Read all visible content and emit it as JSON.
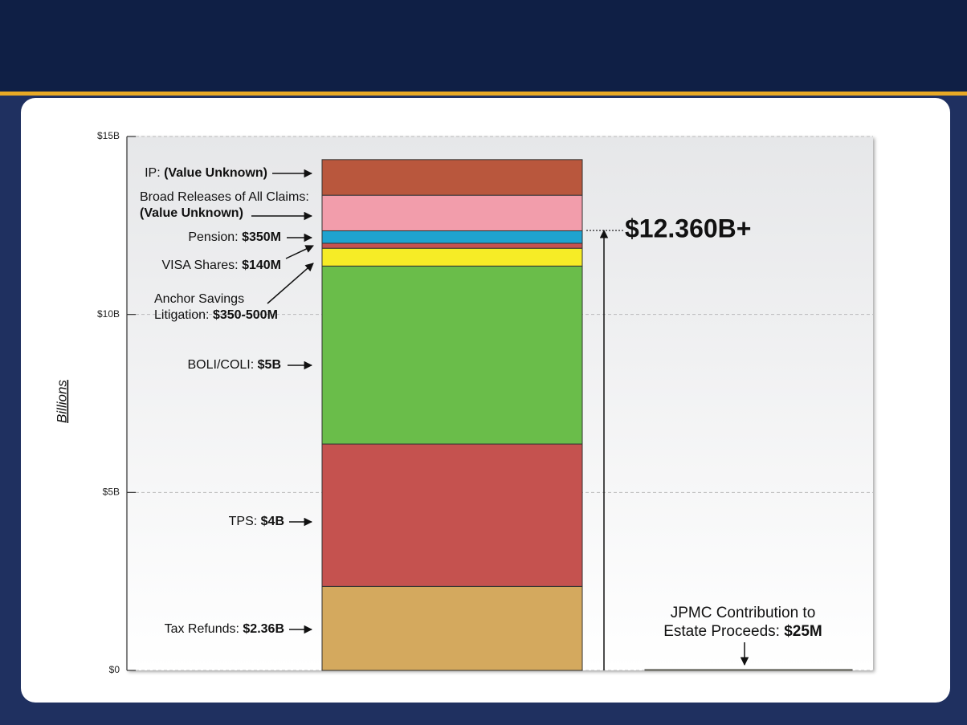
{
  "chart_data": {
    "type": "stacked_bar",
    "ylabel": "Billions",
    "ylim": [
      0,
      15
    ],
    "yticks": [
      {
        "value": 0,
        "label": "$0"
      },
      {
        "value": 5,
        "label": "$5B"
      },
      {
        "value": 10,
        "label": "$10B"
      },
      {
        "value": 15,
        "label": "$15B"
      }
    ],
    "grid": true,
    "series": [
      {
        "name": "Tax Refunds:",
        "color": "#d4a95e",
        "values": [
          2.36
        ],
        "value_labels": [
          "$2.36B"
        ]
      },
      {
        "name": "TPS:",
        "color": "#c5524f",
        "values": [
          4
        ],
        "value_labels": [
          "$4B"
        ]
      },
      {
        "name": "BOLI/COLI:",
        "color": "#6abd4a",
        "values": [
          5
        ],
        "value_labels": [
          "$5B"
        ]
      },
      {
        "name": "Anchor Savings Litigation:",
        "color": "#f6ec26",
        "values": [
          0.5
        ],
        "value_labels": [
          "$350-500M"
        ]
      },
      {
        "name": "VISA Shares:",
        "color": "#c5524f",
        "values": [
          0.14
        ],
        "value_labels": [
          "$140M"
        ]
      },
      {
        "name": "Pension:",
        "color": "#1fa3cf",
        "values": [
          0.35
        ],
        "value_labels": [
          "$350M"
        ]
      },
      {
        "name": "Broad Releases of All Claims:",
        "color": "#f29dab",
        "values": [
          1.0
        ],
        "value_labels": [
          "(Value Unknown)"
        ]
      },
      {
        "name": "IP:",
        "color": "#b9573d",
        "values": [
          1.0
        ],
        "value_labels": [
          "(Value Unknown)"
        ]
      }
    ],
    "total": {
      "label": "$12.360B+",
      "value": 12.36
    },
    "contribution": {
      "name": "JPMC Contribution to Estate Proceeds:",
      "value": 0.025,
      "value_label": "$25M",
      "color": "#e6df3a"
    }
  }
}
